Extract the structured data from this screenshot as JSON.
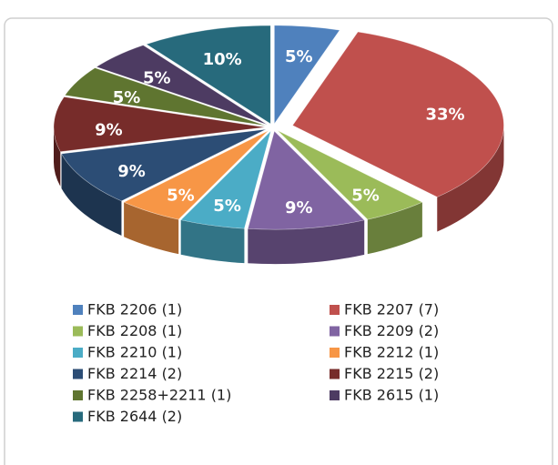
{
  "chart_data": {
    "type": "pie",
    "three_d": true,
    "exploded": true,
    "legend": "bottom",
    "categories": [
      "FKB 2206 (1)",
      "FKB 2207 (7)",
      "FKB 2208 (1)",
      "FKB 2209 (2)",
      "FKB 2210 (1)",
      "FKB 2212 (1)",
      "FKB 2214 (2)",
      "FKB 2215 (2)",
      "FKB 2258+2211 (1)",
      "FKB 2615 (1)",
      "FKB 2644 (2)"
    ],
    "values": [
      5,
      33,
      5,
      9,
      5,
      5,
      9,
      9,
      5,
      5,
      10
    ],
    "value_labels": [
      "5%",
      "33%",
      "5%",
      "9%",
      "5%",
      "5%",
      "9%",
      "9%",
      "5%",
      "5%",
      "10%"
    ],
    "colors": [
      "#4f81bd",
      "#c0504d",
      "#9bbb59",
      "#8064a2",
      "#4bacc6",
      "#f79646",
      "#2c4d75",
      "#772c2a",
      "#5f7530",
      "#4d3b62",
      "#276a7c"
    ]
  }
}
